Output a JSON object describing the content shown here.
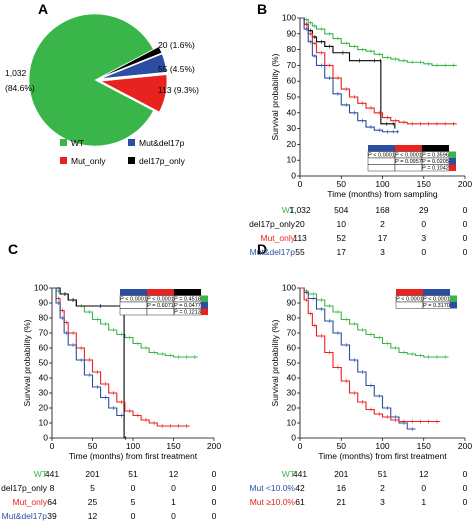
{
  "colors": {
    "WT": "#3ab54a",
    "Mut_only": "#e8231f",
    "Mut&del17p": "#2b4ea2",
    "del17p_only": "#000000",
    "Mut <10.0%": "#2b4ea2",
    "Mut ≥10.0%": "#e8231f"
  },
  "panels": {
    "A": {
      "letter": "A"
    },
    "B": {
      "letter": "B"
    },
    "C": {
      "letter": "C"
    },
    "D": {
      "letter": "D"
    }
  },
  "chart_data": [
    {
      "panel": "A",
      "type": "pie",
      "slices": [
        {
          "name": "WT",
          "value": 1032,
          "label_count": "1,032",
          "label_pct": "(84.6%)"
        },
        {
          "name": "Mut_only",
          "value": 113,
          "label": "113 (9.3%)"
        },
        {
          "name": "Mut&del17p",
          "value": 55,
          "label": "55 (4.5%)"
        },
        {
          "name": "del17p_only",
          "value": 20,
          "label": "20 (1.6%)"
        }
      ],
      "legend": [
        "WT",
        "Mut&del17p",
        "Mut_only",
        "del17p_only"
      ]
    },
    {
      "panel": "B",
      "type": "line",
      "xlabel": "Time (months) from sampling",
      "ylabel": "Survival probability (%)",
      "xlim": [
        0,
        200
      ],
      "ylim": [
        0,
        100
      ],
      "xticks": [
        "0",
        "50",
        "100",
        "150",
        "200"
      ],
      "yticks": [
        "0",
        "10",
        "20",
        "30",
        "40",
        "50",
        "60",
        "70",
        "80",
        "90",
        "100"
      ],
      "series": [
        {
          "name": "WT",
          "x": [
            0,
            5,
            10,
            15,
            20,
            30,
            40,
            50,
            60,
            70,
            80,
            90,
            100,
            110,
            120,
            130,
            140,
            150,
            160,
            170,
            180,
            190
          ],
          "y": [
            100,
            99,
            97,
            95,
            93,
            90,
            87,
            84,
            82,
            80,
            79,
            77,
            75,
            74,
            73,
            72,
            72,
            71,
            70,
            70,
            70,
            70
          ]
        },
        {
          "name": "del17p_only",
          "x": [
            0,
            5,
            10,
            15,
            20,
            30,
            40,
            60,
            80,
            97,
            98,
            110,
            115
          ],
          "y": [
            100,
            96,
            92,
            88,
            85,
            82,
            78,
            73,
            73,
            73,
            33,
            33,
            30
          ]
        },
        {
          "name": "Mut_only",
          "x": [
            0,
            5,
            10,
            15,
            20,
            30,
            40,
            50,
            60,
            70,
            80,
            90,
            100,
            110,
            120,
            130,
            140,
            150,
            160,
            170,
            180,
            190
          ],
          "y": [
            100,
            96,
            90,
            84,
            78,
            70,
            62,
            55,
            50,
            46,
            43,
            40,
            37,
            35,
            34,
            33,
            33,
            33,
            33,
            33,
            33,
            33
          ]
        },
        {
          "name": "Mut&del17p",
          "x": [
            0,
            5,
            10,
            15,
            20,
            30,
            40,
            50,
            60,
            70,
            80,
            90,
            100,
            110,
            115,
            120
          ],
          "y": [
            100,
            93,
            85,
            76,
            70,
            62,
            52,
            45,
            40,
            35,
            31,
            29,
            28,
            28,
            28,
            28
          ]
        }
      ],
      "pvalues": [
        [
          "P < 0.0001",
          "P < 0.0001",
          "P = 0.3596"
        ],
        [
          "",
          "P = 0.0957",
          "P = 0.0205"
        ],
        [
          "",
          "",
          "P = 0.1042"
        ]
      ],
      "risk_table": {
        "rows": [
          {
            "name": "WT",
            "values": [
              "1,032",
              "504",
              "168",
              "29",
              "0"
            ]
          },
          {
            "name": "del17p_only",
            "values": [
              "20",
              "10",
              "2",
              "0",
              "0"
            ]
          },
          {
            "name": "Mut_only",
            "values": [
              "113",
              "52",
              "17",
              "3",
              "0"
            ]
          },
          {
            "name": "Mut&del17p",
            "values": [
              "55",
              "17",
              "3",
              "0",
              "0"
            ]
          }
        ]
      }
    },
    {
      "panel": "C",
      "type": "line",
      "xlabel": "Time (months) from first treatment",
      "ylabel": "Survival probability (%)",
      "xlim": [
        0,
        200
      ],
      "ylim": [
        0,
        100
      ],
      "xticks": [
        "0",
        "50",
        "100",
        "150",
        "200"
      ],
      "yticks": [
        "0",
        "10",
        "20",
        "30",
        "40",
        "50",
        "60",
        "70",
        "80",
        "90",
        "100"
      ],
      "series": [
        {
          "name": "WT",
          "x": [
            0,
            5,
            10,
            20,
            30,
            40,
            50,
            60,
            70,
            80,
            90,
            100,
            110,
            120,
            130,
            140,
            150,
            160,
            170,
            180
          ],
          "y": [
            100,
            98,
            96,
            92,
            88,
            84,
            79,
            76,
            72,
            69,
            67,
            63,
            60,
            57,
            56,
            55,
            54,
            54,
            54,
            54
          ]
        },
        {
          "name": "del17p_only",
          "x": [
            0,
            10,
            20,
            30,
            80,
            88,
            89,
            92
          ],
          "y": [
            100,
            96,
            92,
            88,
            88,
            88,
            0,
            0
          ]
        },
        {
          "name": "Mut_only",
          "x": [
            0,
            5,
            10,
            15,
            20,
            30,
            40,
            50,
            60,
            70,
            80,
            90,
            100,
            110,
            120,
            130,
            140,
            150,
            160,
            170
          ],
          "y": [
            100,
            93,
            85,
            77,
            70,
            60,
            52,
            44,
            36,
            30,
            24,
            18,
            15,
            12,
            10,
            8,
            8,
            8,
            8,
            8
          ]
        },
        {
          "name": "Mut&del17p",
          "x": [
            0,
            5,
            10,
            15,
            20,
            30,
            40,
            50,
            60,
            70,
            80,
            90
          ],
          "y": [
            100,
            90,
            80,
            70,
            62,
            52,
            42,
            34,
            27,
            20,
            15,
            15
          ]
        }
      ],
      "pvalues": [
        [
          "P < 0.0001",
          "P < 0.0001",
          "P = 0.4518"
        ],
        [
          "",
          "P = 0.6071",
          "P = 0.0477"
        ],
        [
          "",
          "",
          "P = 0.1213"
        ]
      ],
      "risk_table": {
        "rows": [
          {
            "name": "WT",
            "values": [
              "441",
              "201",
              "51",
              "12",
              "0"
            ]
          },
          {
            "name": "del17p_only",
            "values": [
              "8",
              "5",
              "0",
              "0",
              "0"
            ]
          },
          {
            "name": "Mut_only",
            "values": [
              "64",
              "25",
              "5",
              "1",
              "0"
            ]
          },
          {
            "name": "Mut&del17p",
            "values": [
              "39",
              "12",
              "0",
              "0",
              "0"
            ]
          }
        ]
      }
    },
    {
      "panel": "D",
      "type": "line",
      "xlabel": "Time (months) from first treatment",
      "ylabel": "Survival probability (%)",
      "xlim": [
        0,
        200
      ],
      "ylim": [
        0,
        100
      ],
      "xticks": [
        "0",
        "50",
        "100",
        "150",
        "200"
      ],
      "yticks": [
        "0",
        "10",
        "20",
        "30",
        "40",
        "50",
        "60",
        "70",
        "80",
        "90",
        "100"
      ],
      "series": [
        {
          "name": "WT",
          "x": [
            0,
            5,
            10,
            20,
            30,
            40,
            50,
            60,
            70,
            80,
            90,
            100,
            110,
            120,
            130,
            140,
            150,
            160,
            170,
            180
          ],
          "y": [
            100,
            98,
            96,
            92,
            88,
            84,
            79,
            76,
            72,
            69,
            67,
            63,
            60,
            57,
            56,
            55,
            54,
            54,
            54,
            54
          ]
        },
        {
          "name": "Mut <10.0%",
          "x": [
            0,
            5,
            10,
            20,
            30,
            40,
            50,
            60,
            70,
            80,
            90,
            100,
            110,
            120,
            130,
            140
          ],
          "y": [
            100,
            97,
            93,
            86,
            78,
            70,
            62,
            52,
            44,
            35,
            28,
            20,
            14,
            10,
            6,
            6
          ]
        },
        {
          "name": "Mut ≥10.0%",
          "x": [
            0,
            5,
            10,
            15,
            20,
            30,
            40,
            50,
            60,
            70,
            80,
            90,
            100,
            110,
            120,
            130,
            140,
            150,
            160,
            170
          ],
          "y": [
            100,
            92,
            83,
            75,
            68,
            57,
            47,
            38,
            30,
            24,
            19,
            16,
            14,
            12,
            11,
            11,
            11,
            11,
            11,
            11
          ]
        }
      ],
      "pvalues": [
        [
          "P < 0.0001",
          "P < 0.0001"
        ],
        [
          "",
          "P = 0.3170"
        ]
      ],
      "risk_table": {
        "rows": [
          {
            "name": "WT",
            "values": [
              "441",
              "201",
              "51",
              "12",
              "0"
            ]
          },
          {
            "name": "Mut <10.0%",
            "values": [
              "42",
              "16",
              "2",
              "0",
              "0"
            ]
          },
          {
            "name": "Mut ≥10.0%",
            "values": [
              "61",
              "21",
              "3",
              "1",
              "0"
            ]
          }
        ]
      }
    }
  ]
}
